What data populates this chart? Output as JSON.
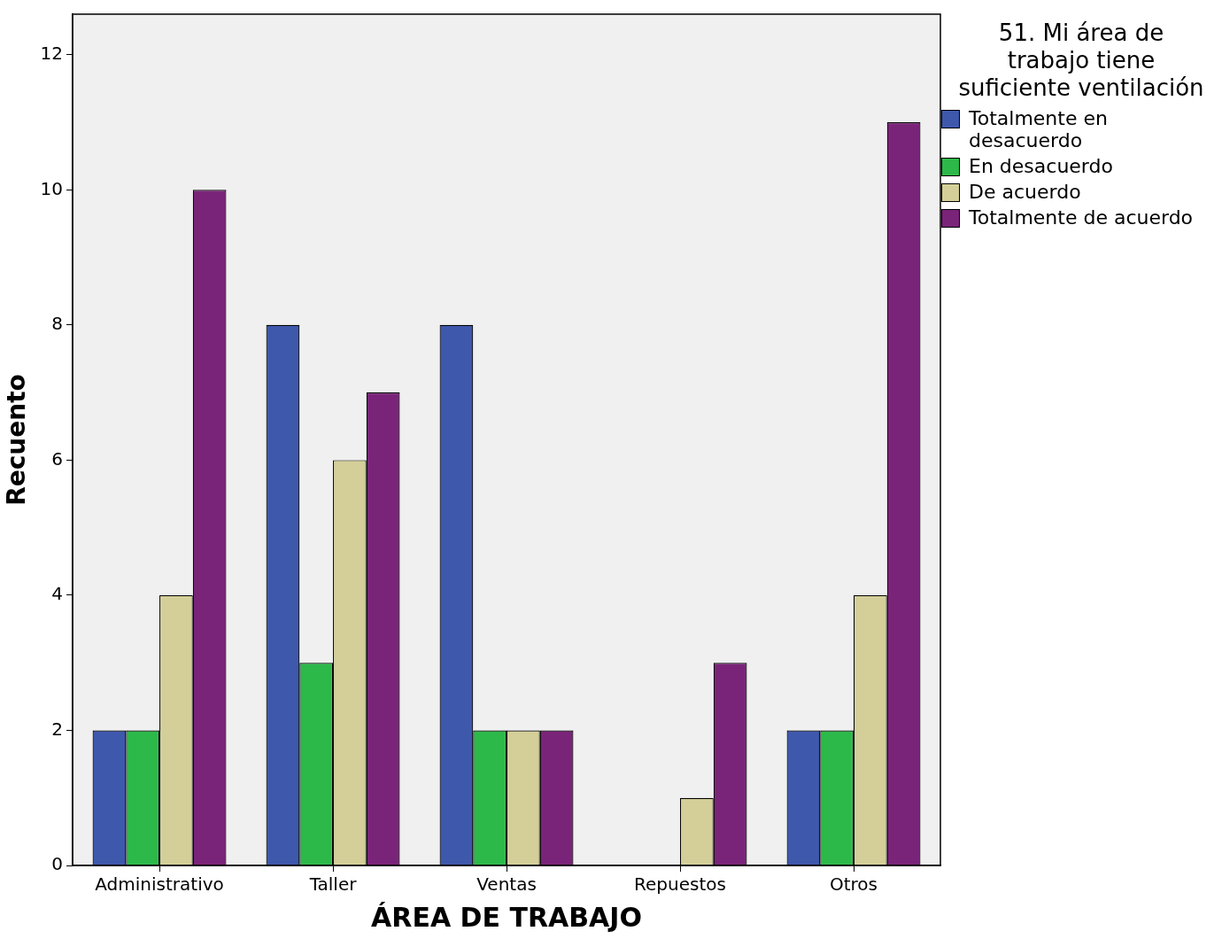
{
  "chart_data": {
    "type": "bar",
    "xlabel": "ÁREA DE TRABAJO",
    "ylabel": "Recuento",
    "legend_title": "51. Mi área de trabajo tiene suficiente ventilación",
    "categories": [
      "Administrativo",
      "Taller",
      "Ventas",
      "Repuestos",
      "Otros"
    ],
    "series": [
      {
        "name": "Totalmente en desacuerdo",
        "color": "#3e58ac",
        "values": [
          2,
          8,
          8,
          0,
          2
        ]
      },
      {
        "name": "En desacuerdo",
        "color": "#2db84a",
        "values": [
          2,
          3,
          2,
          0,
          2
        ]
      },
      {
        "name": "De acuerdo",
        "color": "#d4cf98",
        "values": [
          4,
          6,
          2,
          1,
          4
        ]
      },
      {
        "name": "Totalmente de acuerdo",
        "color": "#7a2479",
        "values": [
          10,
          7,
          2,
          3,
          11
        ]
      }
    ],
    "ylim": [
      0,
      12.6
    ],
    "yticks": [
      0,
      2,
      4,
      6,
      8,
      10,
      12
    ],
    "grid": false,
    "legend": "top right"
  }
}
